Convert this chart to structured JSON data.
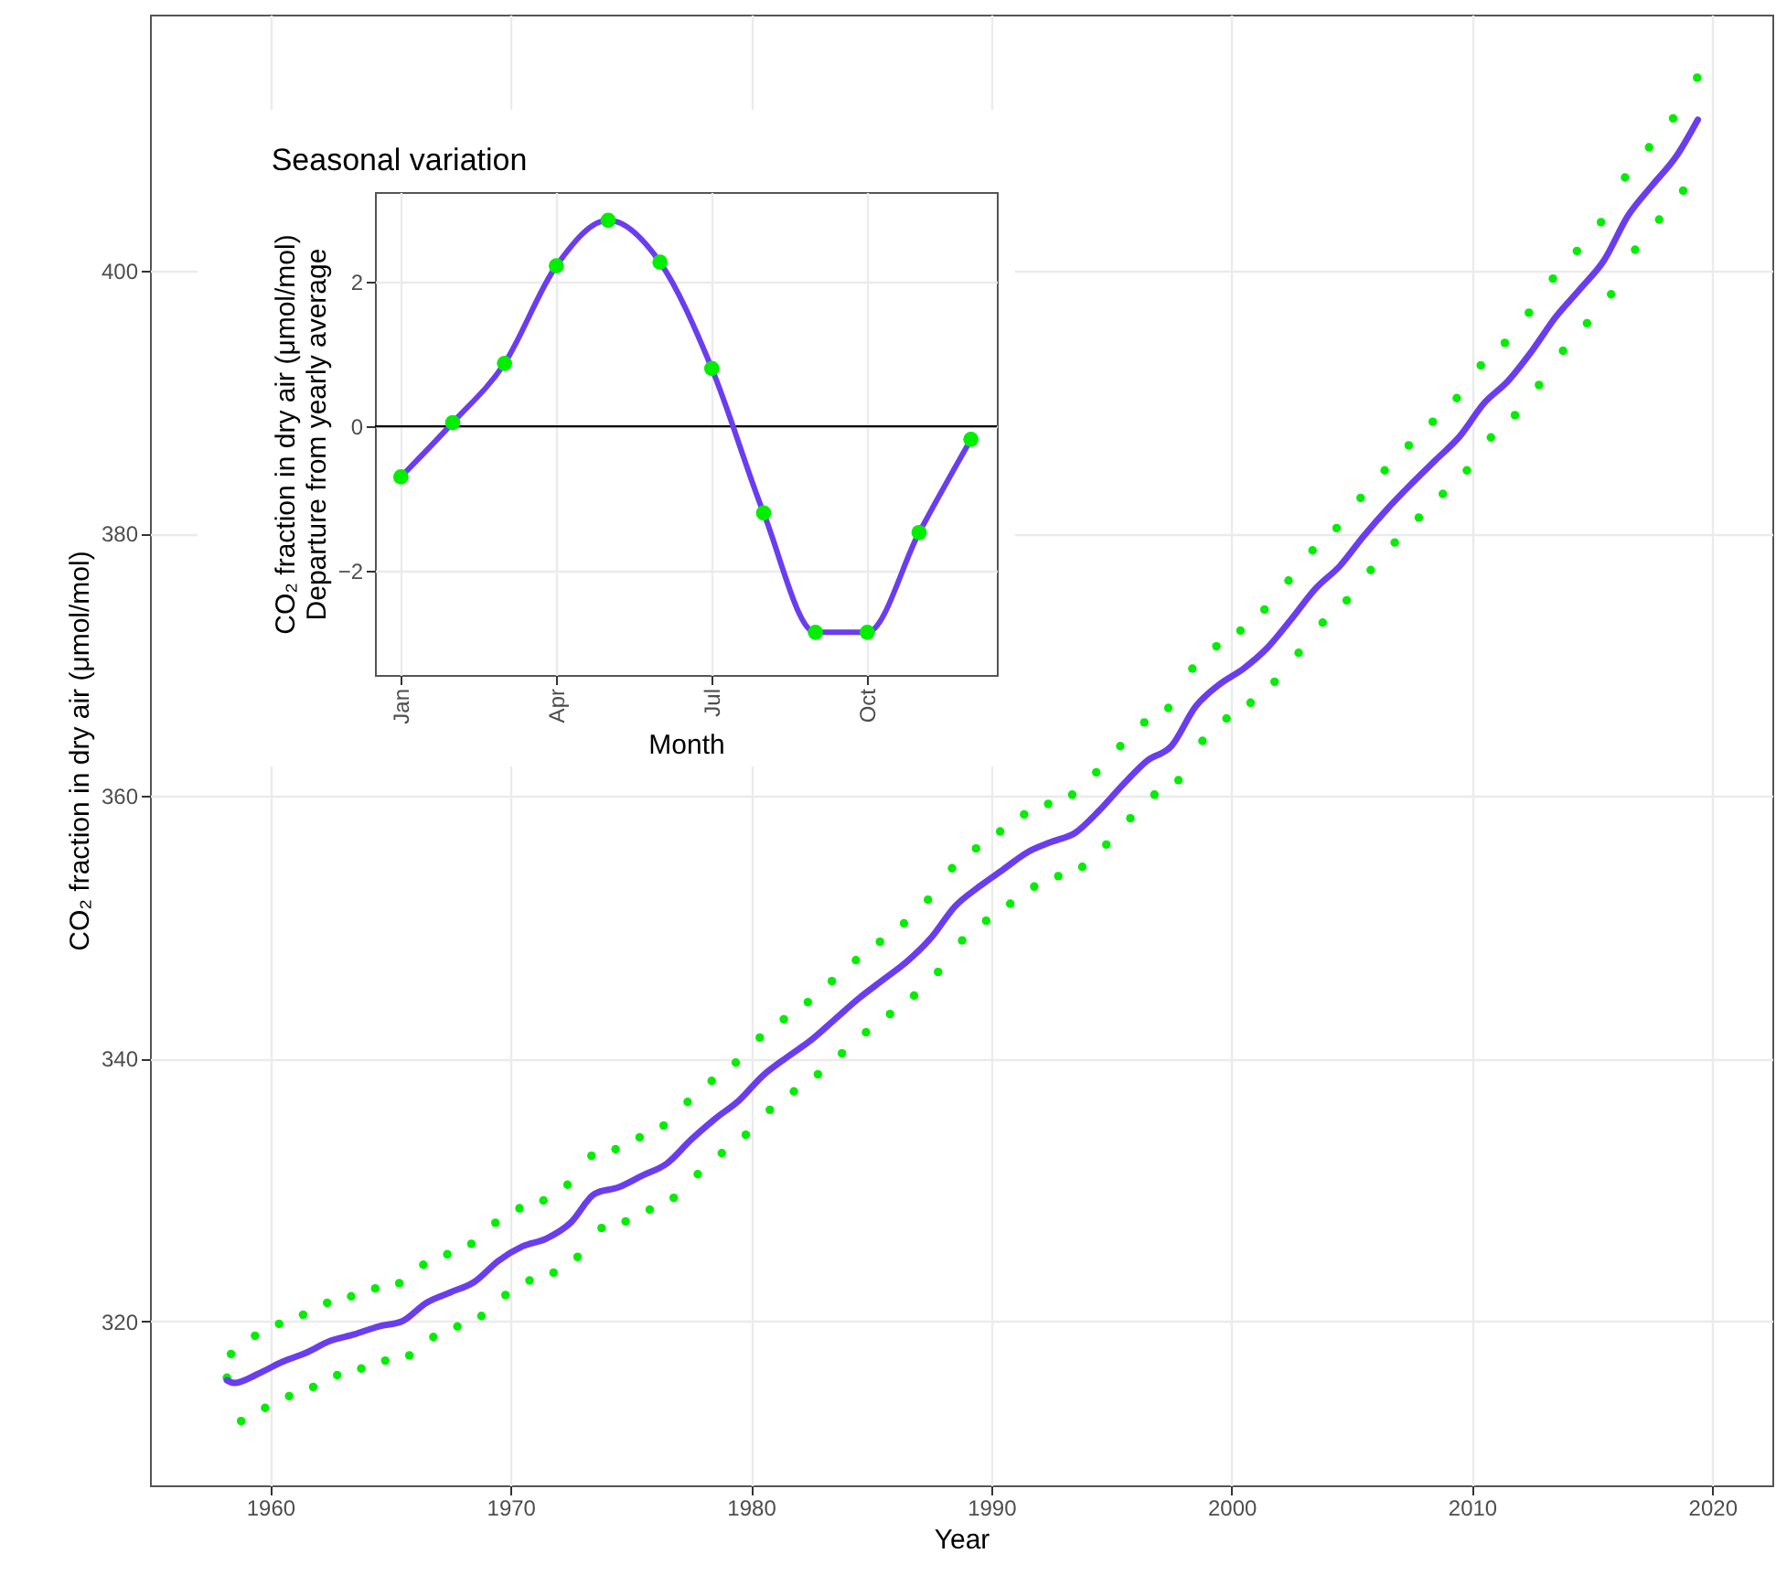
{
  "chart_data": [
    {
      "type": "line",
      "xlabel": "Year",
      "ylabel": "CO₂ fraction in dry air (μmol/mol)",
      "xlim": [
        1955,
        2022.5
      ],
      "ylim": [
        307.5,
        419.5
      ],
      "xticks": [
        1960,
        1970,
        1980,
        1990,
        2000,
        2010,
        2020
      ],
      "yticks": [
        320,
        340,
        360,
        380,
        400
      ],
      "grid": true,
      "series": [
        {
          "type": "scatter",
          "marker": "circle",
          "color": "#00ee00",
          "x": [
            1958.2,
            1958.37,
            1958.79,
            1959.37,
            1959.79,
            1960.37,
            1960.79,
            1961.37,
            1961.79,
            1962.37,
            1962.79,
            1963.37,
            1963.79,
            1964.37,
            1964.79,
            1965.37,
            1965.79,
            1966.37,
            1966.79,
            1967.37,
            1967.79,
            1968.37,
            1968.79,
            1969.37,
            1969.79,
            1970.37,
            1970.79,
            1971.37,
            1971.79,
            1972.37,
            1972.79,
            1973.37,
            1973.79,
            1974.37,
            1974.79,
            1975.37,
            1975.79,
            1976.37,
            1976.79,
            1977.37,
            1977.79,
            1978.37,
            1978.79,
            1979.37,
            1979.79,
            1980.37,
            1980.79,
            1981.37,
            1981.79,
            1982.37,
            1982.79,
            1983.37,
            1983.79,
            1984.37,
            1984.79,
            1985.37,
            1985.79,
            1986.37,
            1986.79,
            1987.37,
            1987.79,
            1988.37,
            1988.79,
            1989.37,
            1989.79,
            1990.37,
            1990.79,
            1991.37,
            1991.79,
            1992.37,
            1992.79,
            1993.37,
            1993.79,
            1994.37,
            1994.79,
            1995.37,
            1995.79,
            1996.37,
            1996.79,
            1997.37,
            1997.79,
            1998.37,
            1998.79,
            1999.37,
            1999.79,
            2000.37,
            2000.79,
            2001.37,
            2001.79,
            2002.37,
            2002.79,
            2003.37,
            2003.79,
            2004.37,
            2004.79,
            2005.37,
            2005.79,
            2006.37,
            2006.79,
            2007.37,
            2007.79,
            2008.37,
            2008.79,
            2009.37,
            2009.79,
            2010.37,
            2010.79,
            2011.37,
            2011.79,
            2012.37,
            2012.79,
            2013.37,
            2013.79,
            2014.37,
            2014.79,
            2015.37,
            2015.79,
            2016.37,
            2016.79,
            2017.37,
            2017.79,
            2018.37,
            2018.79,
            2019.37
          ],
          "values": [
            315.7,
            317.5,
            312.4,
            318.9,
            313.4,
            319.8,
            314.3,
            320.5,
            315.0,
            321.4,
            315.9,
            321.9,
            316.4,
            322.5,
            317.0,
            322.9,
            317.4,
            324.3,
            318.8,
            325.1,
            319.6,
            325.9,
            320.4,
            327.5,
            322.0,
            328.6,
            323.1,
            329.2,
            323.7,
            330.4,
            324.9,
            332.6,
            327.1,
            333.1,
            327.6,
            334.0,
            328.5,
            334.9,
            329.4,
            336.7,
            331.2,
            338.3,
            332.8,
            339.7,
            334.2,
            341.6,
            336.1,
            343.0,
            337.5,
            344.3,
            338.8,
            345.9,
            340.4,
            347.5,
            342.0,
            348.9,
            343.4,
            350.3,
            344.8,
            352.1,
            346.6,
            354.5,
            349.0,
            356.0,
            350.5,
            357.3,
            351.8,
            358.6,
            353.1,
            359.4,
            353.9,
            360.1,
            354.6,
            361.8,
            356.3,
            363.8,
            358.3,
            365.6,
            360.1,
            366.7,
            361.2,
            369.7,
            364.2,
            371.4,
            365.9,
            372.6,
            367.1,
            374.2,
            368.7,
            376.4,
            370.9,
            378.7,
            373.2,
            380.4,
            374.9,
            382.7,
            377.2,
            384.8,
            379.3,
            386.7,
            381.2,
            388.5,
            383.0,
            390.3,
            384.8,
            392.8,
            387.3,
            394.5,
            389.0,
            396.8,
            391.3,
            399.4,
            393.9,
            401.5,
            396.0,
            403.7,
            398.2,
            407.1,
            401.6,
            409.4,
            403.9,
            411.6,
            406.1,
            414.7
          ]
        },
        {
          "color": "#6a3df0",
          "x": [
            1958.2,
            1958.5,
            1959.5,
            1960.5,
            1961.5,
            1962.5,
            1963.5,
            1964.5,
            1965.5,
            1966.5,
            1967.5,
            1968.5,
            1969.5,
            1970.5,
            1971.5,
            1972.5,
            1973.5,
            1974.5,
            1975.5,
            1976.5,
            1977.5,
            1978.5,
            1979.5,
            1980.5,
            1981.5,
            1982.5,
            1983.5,
            1984.5,
            1985.5,
            1986.5,
            1987.5,
            1988.5,
            1989.5,
            1990.5,
            1991.5,
            1992.5,
            1993.5,
            1994.5,
            1995.5,
            1996.5,
            1997.5,
            1998.5,
            1999.5,
            2000.5,
            2001.5,
            2002.5,
            2003.5,
            2004.5,
            2005.5,
            2006.5,
            2007.5,
            2008.5,
            2009.5,
            2010.5,
            2011.5,
            2012.5,
            2013.5,
            2014.5,
            2015.5,
            2016.5,
            2017.5,
            2018.5,
            2019.4
          ],
          "values": [
            315.5,
            315.3,
            316.0,
            316.9,
            317.6,
            318.5,
            319.0,
            319.6,
            320.0,
            321.4,
            322.2,
            323.0,
            324.6,
            325.7,
            326.3,
            327.5,
            329.7,
            330.2,
            331.1,
            332.0,
            333.8,
            335.4,
            336.8,
            338.7,
            340.1,
            341.4,
            343.0,
            344.6,
            346.0,
            347.4,
            349.2,
            351.6,
            353.1,
            354.4,
            355.7,
            356.5,
            357.2,
            358.9,
            360.9,
            362.7,
            363.8,
            366.8,
            368.5,
            369.7,
            371.3,
            373.5,
            375.8,
            377.5,
            379.8,
            381.9,
            383.8,
            385.6,
            387.4,
            389.9,
            391.6,
            393.9,
            396.5,
            398.6,
            400.8,
            404.2,
            406.5,
            408.7,
            411.5
          ]
        }
      ]
    },
    {
      "type": "line",
      "title": "Seasonal variation",
      "xlabel": "Month",
      "ylabel": "CO₂ fraction in dry air (μmol/mol)\nDeparture from yearly average",
      "categories": [
        "Jan",
        null,
        null,
        "Apr",
        null,
        null,
        "Jul",
        null,
        null,
        "Oct",
        null,
        null
      ],
      "ylim": [
        -3.44,
        3.24
      ],
      "yticks": [
        -2,
        0,
        2
      ],
      "grid": true,
      "ref_lines": [
        {
          "axis": "y",
          "value": 0,
          "color": "#000000"
        }
      ],
      "series": [
        {
          "color": "#6a3df0",
          "values": [
            -0.7,
            0.05,
            0.87,
            2.22,
            2.85,
            2.27,
            0.8,
            -1.2,
            -2.85,
            -2.85,
            -1.47,
            -0.18
          ]
        },
        {
          "type": "scatter",
          "marker": "circle",
          "color": "#00ee00",
          "values": [
            -0.7,
            0.05,
            0.87,
            2.22,
            2.85,
            2.27,
            0.8,
            -1.2,
            -2.85,
            -2.85,
            -1.47,
            -0.18
          ]
        }
      ]
    }
  ]
}
